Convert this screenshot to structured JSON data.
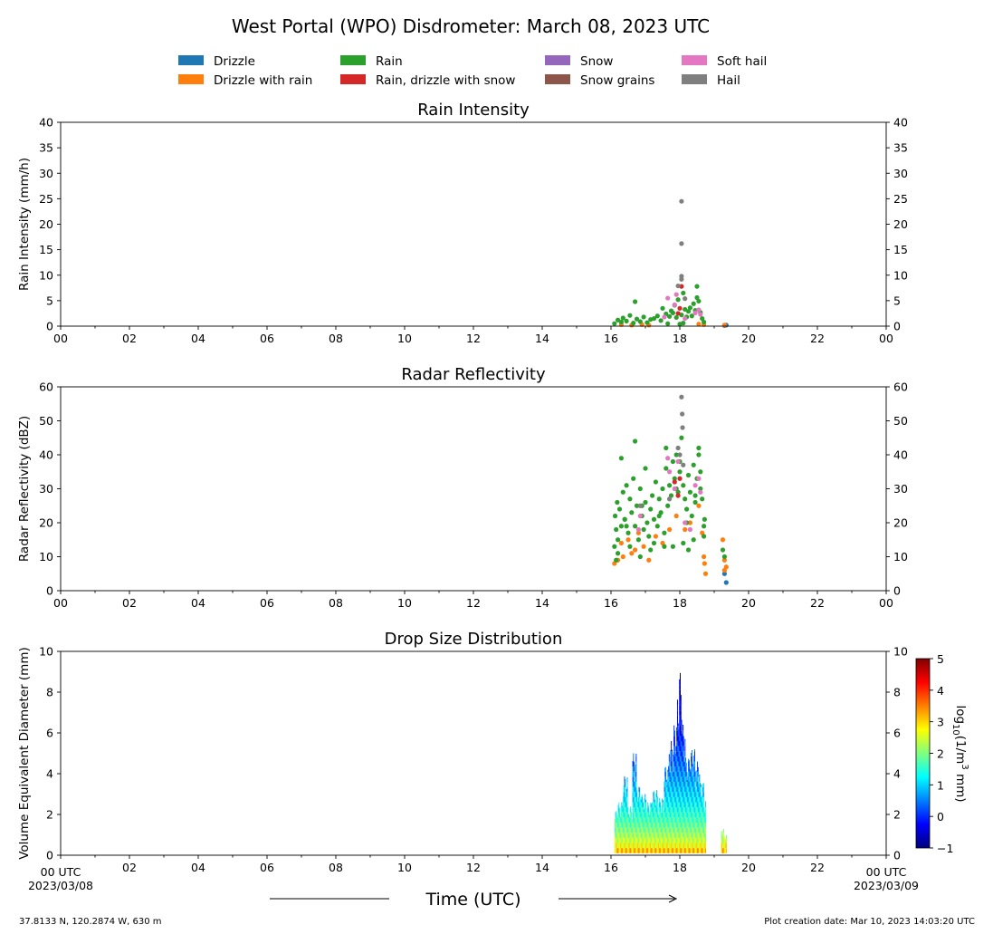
{
  "figure": {
    "title": "West Portal (WPO) Disdrometer: March 08, 2023 UTC",
    "location": "37.8133 N, 120.2874 W, 630 m",
    "creation_date": "Plot creation date: Mar 10, 2023 14:03:20 UTC",
    "x_axis_title": "Time (UTC)",
    "x_start_label": "00 UTC",
    "x_start_date": "2023/03/08",
    "x_end_label": "00 UTC",
    "x_end_date": "2023/03/09"
  },
  "legend": [
    {
      "label": "Drizzle",
      "color": "#1f77b4"
    },
    {
      "label": "Drizzle with rain",
      "color": "#ff7f0e"
    },
    {
      "label": "Rain",
      "color": "#2ca02c"
    },
    {
      "label": "Rain, drizzle with snow",
      "color": "#d62728"
    },
    {
      "label": "Snow",
      "color": "#9467bd"
    },
    {
      "label": "Snow grains",
      "color": "#8c564b"
    },
    {
      "label": "Soft hail",
      "color": "#e377c2"
    },
    {
      "label": "Hail",
      "color": "#7f7f7f"
    }
  ],
  "colorbar": {
    "label_prefix": "log",
    "label_sub": "10",
    "label_mid": "(1/m",
    "label_sup": "3",
    "label_suffix": " mm)",
    "ticks": [
      "5",
      "4",
      "3",
      "2",
      "1",
      "0",
      "−1"
    ],
    "range": [
      -1,
      5
    ],
    "colormap": "jet"
  },
  "x_tick_labels": [
    "00",
    "02",
    "04",
    "06",
    "08",
    "10",
    "12",
    "14",
    "16",
    "18",
    "20",
    "22",
    "00"
  ],
  "chart_data": [
    {
      "type": "scatter",
      "title": "Rain Intensity",
      "ylabel": "Rain Intensity (mm/h)",
      "xlabel": "",
      "xlim": [
        0,
        24
      ],
      "ylim": [
        0,
        40
      ],
      "y_ticks": [
        "0",
        "5",
        "10",
        "15",
        "20",
        "25",
        "30",
        "35",
        "40"
      ],
      "grid": false,
      "series": [
        {
          "name": "Drizzle",
          "color": "#1f77b4",
          "x": [
            19.3,
            19.35
          ],
          "y": [
            0.1,
            0.2
          ]
        },
        {
          "name": "Drizzle with rain",
          "color": "#ff7f0e",
          "x": [
            16.3,
            16.6,
            16.9,
            17.1,
            18.55,
            18.7,
            19.3
          ],
          "y": [
            0.3,
            0.2,
            0.3,
            0.2,
            0.4,
            0.3,
            0.2
          ]
        },
        {
          "name": "Rain",
          "color": "#2ca02c",
          "x": [
            16.1,
            16.2,
            16.3,
            16.35,
            16.45,
            16.55,
            16.65,
            16.75,
            16.85,
            16.95,
            17.05,
            17.15,
            17.25,
            17.35,
            17.45,
            17.5,
            17.6,
            17.7,
            17.75,
            17.8,
            17.85,
            17.9,
            17.95,
            18.05,
            18.1,
            18.15,
            18.2,
            18.25,
            18.3,
            18.35,
            18.4,
            18.45,
            18.5,
            18.55,
            18.6,
            18.65,
            18.7,
            16.7,
            18.0,
            18.1,
            17.65,
            18.5
          ],
          "y": [
            0.5,
            1.2,
            0.8,
            1.6,
            1.0,
            2.1,
            0.6,
            1.4,
            0.9,
            1.8,
            0.7,
            1.3,
            1.5,
            2.0,
            1.1,
            3.5,
            2.4,
            1.9,
            3.0,
            2.6,
            4.1,
            1.7,
            5.2,
            2.2,
            6.5,
            3.3,
            1.8,
            2.9,
            3.6,
            2.0,
            4.4,
            3.1,
            5.6,
            4.9,
            2.7,
            1.5,
            0.8,
            4.8,
            0.4,
            0.6,
            0.5,
            7.8
          ]
        },
        {
          "name": "Rain, drizzle with snow",
          "color": "#d62728",
          "x": [
            17.95,
            18.0,
            18.05
          ],
          "y": [
            2.5,
            3.5,
            7.8
          ]
        },
        {
          "name": "Snow",
          "color": "#9467bd",
          "x": [],
          "y": []
        },
        {
          "name": "Snow grains",
          "color": "#8c564b",
          "x": [],
          "y": []
        },
        {
          "name": "Soft hail",
          "color": "#e377c2",
          "x": [
            17.55,
            17.65,
            17.85,
            17.9,
            18.15,
            18.45,
            18.55,
            18.6
          ],
          "y": [
            1.8,
            5.5,
            4.2,
            6.2,
            1.5,
            2.6,
            3.2,
            2.3
          ]
        },
        {
          "name": "Hail",
          "color": "#7f7f7f",
          "x": [
            18.05,
            18.05,
            18.05,
            18.05,
            17.95,
            18.15
          ],
          "y": [
            24.5,
            16.2,
            9.8,
            9.2,
            7.9,
            5.4
          ]
        }
      ]
    },
    {
      "type": "scatter",
      "title": "Radar Reflectivity",
      "ylabel": "Radar Reflectivity (dBZ)",
      "xlabel": "",
      "xlim": [
        0,
        24
      ],
      "ylim": [
        0,
        60
      ],
      "y_ticks": [
        "0",
        "10",
        "20",
        "30",
        "40",
        "50",
        "60"
      ],
      "grid": false,
      "series": [
        {
          "name": "Drizzle",
          "color": "#1f77b4",
          "x": [
            19.3,
            19.35
          ],
          "y": [
            5,
            2.4
          ]
        },
        {
          "name": "Drizzle with rain",
          "color": "#ff7f0e",
          "x": [
            16.1,
            16.2,
            16.3,
            16.35,
            16.5,
            16.6,
            16.7,
            16.8,
            16.95,
            17.1,
            17.3,
            17.5,
            17.7,
            17.9,
            18.15,
            18.3,
            18.55,
            18.65,
            18.7,
            18.72,
            18.75,
            19.25,
            19.3,
            19.35,
            19.3
          ],
          "y": [
            8,
            9,
            14,
            10,
            15,
            11,
            12,
            17,
            13,
            9,
            16,
            14,
            18,
            22,
            18,
            20,
            25,
            17,
            10,
            8,
            5,
            15,
            9,
            7,
            6
          ]
        },
        {
          "name": "Rain",
          "color": "#2ca02c",
          "x": [
            16.1,
            16.12,
            16.15,
            16.18,
            16.2,
            16.25,
            16.3,
            16.35,
            16.4,
            16.45,
            16.5,
            16.55,
            16.6,
            16.65,
            16.7,
            16.75,
            16.8,
            16.85,
            16.9,
            16.95,
            17.0,
            17.05,
            17.1,
            17.15,
            17.2,
            17.25,
            17.3,
            17.35,
            17.4,
            17.45,
            17.5,
            17.55,
            17.6,
            17.65,
            17.7,
            17.75,
            17.8,
            17.85,
            17.9,
            17.95,
            18.0,
            18.05,
            18.1,
            18.15,
            18.2,
            18.25,
            18.3,
            18.35,
            18.4,
            18.45,
            18.5,
            18.55,
            18.6,
            18.65,
            18.7,
            16.3,
            16.7,
            17.0,
            17.6,
            18.0,
            18.25,
            18.55,
            16.2,
            16.55,
            16.85,
            17.25,
            17.8,
            18.4,
            18.7,
            19.25,
            19.3,
            16.4,
            16.9,
            17.4,
            17.9,
            18.2,
            18.6,
            16.15,
            16.45,
            17.15,
            17.55,
            18.1,
            18.45,
            18.72
          ],
          "y": [
            13,
            22,
            18,
            26,
            15,
            24,
            19,
            29,
            21,
            31,
            17,
            27,
            23,
            33,
            19,
            25,
            15,
            30,
            22,
            18,
            26,
            20,
            16,
            24,
            28,
            21,
            32,
            19,
            27,
            23,
            30,
            17,
            36,
            25,
            31,
            28,
            38,
            33,
            40,
            29,
            35,
            45,
            31,
            27,
            24,
            34,
            29,
            22,
            37,
            26,
            33,
            42,
            30,
            27,
            19,
            39,
            44,
            36,
            42,
            38,
            12,
            40,
            11,
            13,
            10,
            14,
            13,
            15,
            16,
            12,
            10,
            21,
            25,
            22,
            30,
            20,
            35,
            9,
            19,
            12,
            13,
            14,
            28,
            21
          ]
        },
        {
          "name": "Rain, drizzle with snow",
          "color": "#d62728",
          "x": [
            17.85,
            17.95,
            18.0
          ],
          "y": [
            32,
            28,
            33
          ]
        },
        {
          "name": "Snow",
          "color": "#9467bd",
          "x": [],
          "y": []
        },
        {
          "name": "Snow grains",
          "color": "#8c564b",
          "x": [],
          "y": []
        },
        {
          "name": "Soft hail",
          "color": "#e377c2",
          "x": [
            16.8,
            16.85,
            17.65,
            17.7,
            17.85,
            17.95,
            18.15,
            18.3,
            18.45,
            18.55,
            18.6
          ],
          "y": [
            18,
            22,
            39,
            35,
            30,
            38,
            20,
            18,
            31,
            33,
            29
          ]
        },
        {
          "name": "Hail",
          "color": "#7f7f7f",
          "x": [
            18.05,
            18.07,
            18.08,
            17.95,
            18.0,
            18.1,
            16.85,
            17.7
          ],
          "y": [
            57,
            52,
            48,
            42,
            40,
            37,
            25,
            27
          ]
        }
      ]
    },
    {
      "type": "heatmap",
      "title": "Drop Size Distribution",
      "ylabel": "Volume Equivalent Diameter (mm)",
      "xlabel": "Time (UTC)",
      "xlim": [
        0,
        24
      ],
      "ylim": [
        0,
        10
      ],
      "y_ticks": [
        "0",
        "2",
        "4",
        "6",
        "8",
        "10"
      ],
      "value_range": [
        -1,
        5
      ],
      "active_interval": [
        16.1,
        18.75
      ],
      "late_interval": [
        19.2,
        19.35
      ],
      "max_diameter_profile": [
        {
          "x": 16.1,
          "d": 2.2
        },
        {
          "x": 16.25,
          "d": 2.6
        },
        {
          "x": 16.4,
          "d": 3.9
        },
        {
          "x": 16.55,
          "d": 2.4
        },
        {
          "x": 16.65,
          "d": 5.0
        },
        {
          "x": 16.8,
          "d": 3.4
        },
        {
          "x": 16.95,
          "d": 3.0
        },
        {
          "x": 17.1,
          "d": 2.6
        },
        {
          "x": 17.25,
          "d": 3.2
        },
        {
          "x": 17.45,
          "d": 2.8
        },
        {
          "x": 17.6,
          "d": 4.4
        },
        {
          "x": 17.75,
          "d": 5.6
        },
        {
          "x": 17.85,
          "d": 6.4
        },
        {
          "x": 17.95,
          "d": 7.8
        },
        {
          "x": 18.0,
          "d": 9.0
        },
        {
          "x": 18.1,
          "d": 6.4
        },
        {
          "x": 18.2,
          "d": 4.8
        },
        {
          "x": 18.35,
          "d": 5.2
        },
        {
          "x": 18.5,
          "d": 4.6
        },
        {
          "x": 18.65,
          "d": 3.6
        },
        {
          "x": 18.72,
          "d": 2.8
        },
        {
          "x": 19.25,
          "d": 1.3
        },
        {
          "x": 19.3,
          "d": 1.0
        }
      ]
    }
  ]
}
